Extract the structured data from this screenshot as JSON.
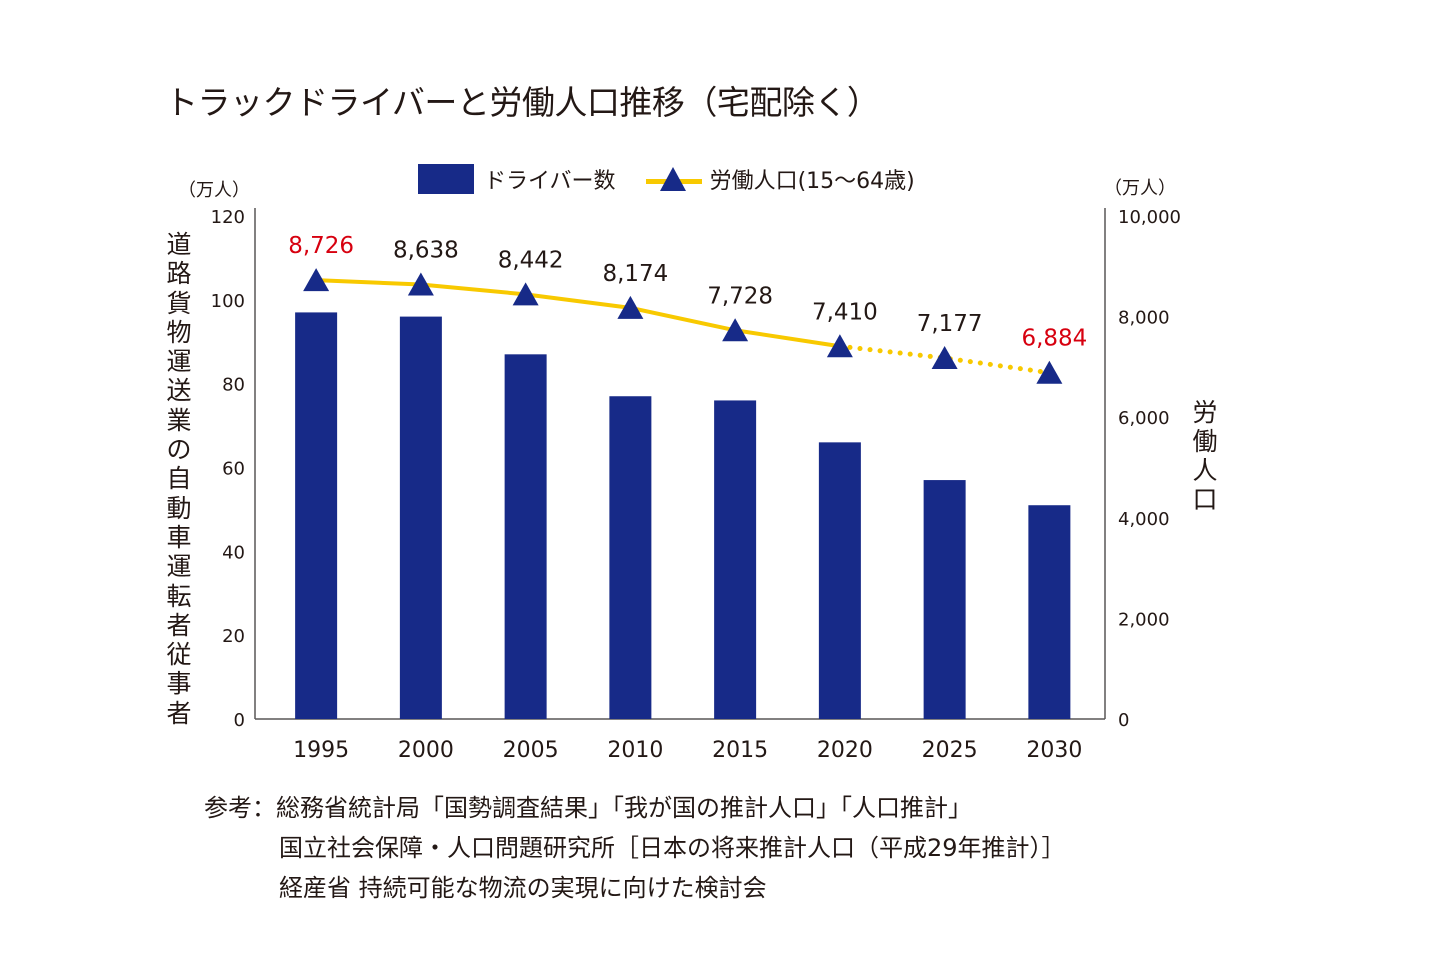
{
  "title": "トラックドライバーと労働人口推移（宅配除く）",
  "legend": {
    "bar_label": "ドライバー数",
    "line_label": "労働人口(15〜64歳)"
  },
  "axes": {
    "left_unit": "（万人）",
    "right_unit": "（万人）",
    "left_label": "道路貨物運送業の自動車運転者従事者",
    "right_label": "労働人口"
  },
  "notes": {
    "prefix": "参考：",
    "lines": [
      "総務省統計局「国勢調査結果」「我が国の推計人口」「人口推計」",
      "国立社会保障・人口問題研究所［日本の将来推計人口（平成29年推計）］",
      "経産省 持続可能な物流の実現に向けた検討会"
    ]
  },
  "colors": {
    "bar": "#172a88",
    "line": "#f8c900",
    "marker": "#172a88",
    "highlight_label": "#d7000f",
    "text": "#231815",
    "axis": "#595757"
  },
  "chart_data": {
    "type": "bar+line",
    "title": "トラックドライバーと労働人口推移（宅配除く）",
    "categories": [
      "1995",
      "2000",
      "2005",
      "2010",
      "2015",
      "2020",
      "2025",
      "2030"
    ],
    "series": [
      {
        "name": "ドライバー数",
        "type": "bar",
        "axis": "left",
        "values": [
          97,
          96,
          87,
          77,
          76,
          66,
          57,
          51
        ]
      },
      {
        "name": "労働人口(15〜64歳)",
        "type": "line",
        "axis": "right",
        "marker": "triangle",
        "values": [
          8726,
          8638,
          8442,
          8174,
          7728,
          7410,
          7177,
          6884
        ],
        "data_labels": [
          "8,726",
          "8,638",
          "8,442",
          "8,174",
          "7,728",
          "7,410",
          "7,177",
          "6,884"
        ],
        "highlighted_labels": [
          0,
          7
        ],
        "projected_from_index": 5,
        "projected_style": "dotted"
      }
    ],
    "ylabel_left": "道路貨物運送業の自動車運転者従事者",
    "ylabel_right": "労働人口",
    "ylim_left": [
      0,
      120
    ],
    "yticks_left": [
      "0",
      "20",
      "40",
      "60",
      "80",
      "100",
      "120"
    ],
    "ylim_right": [
      0,
      10000
    ],
    "yticks_right": [
      "0",
      "2,000",
      "4,000",
      "6,000",
      "8,000",
      "10,000"
    ],
    "grid": false,
    "legend_position": "top-center"
  }
}
